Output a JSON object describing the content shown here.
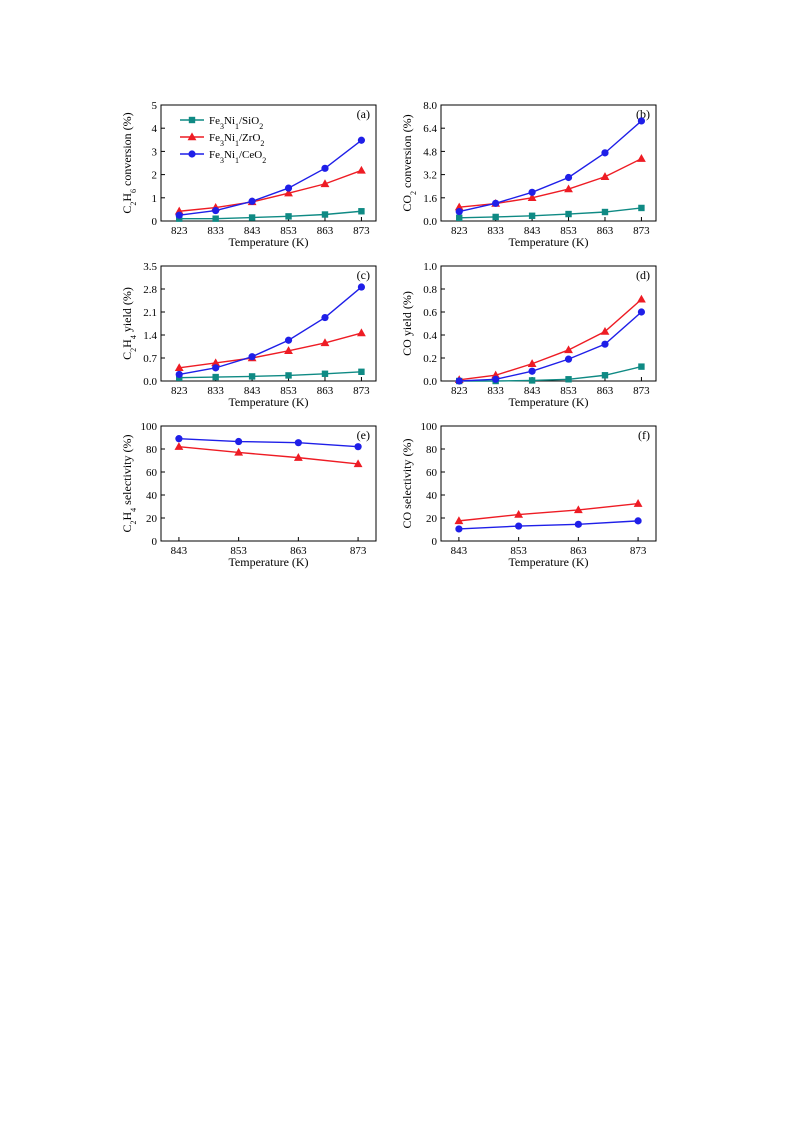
{
  "colors": {
    "SiO2": "#0f8a84",
    "ZrO2": "#ee1c24",
    "CeO2": "#1f1fe8"
  },
  "legend": [
    {
      "key": "SiO2",
      "parts": [
        [
          "Fe",
          ""
        ],
        [
          "3",
          "sub"
        ],
        [
          "Ni",
          ""
        ],
        [
          "1",
          "sub"
        ],
        [
          "/SiO",
          ""
        ],
        [
          "2",
          "sub"
        ]
      ],
      "marker": "square"
    },
    {
      "key": "ZrO2",
      "parts": [
        [
          "Fe",
          ""
        ],
        [
          "3",
          "sub"
        ],
        [
          "Ni",
          ""
        ],
        [
          "1",
          "sub"
        ],
        [
          "/ZrO",
          ""
        ],
        [
          "2",
          "sub"
        ]
      ],
      "marker": "triangle"
    },
    {
      "key": "CeO2",
      "parts": [
        [
          "Fe",
          ""
        ],
        [
          "3",
          "sub"
        ],
        [
          "Ni",
          ""
        ],
        [
          "1",
          "sub"
        ],
        [
          "/CeO",
          ""
        ],
        [
          "2",
          "sub"
        ]
      ],
      "marker": "circle"
    }
  ],
  "chart_data": [
    {
      "panel": "(a)",
      "type": "line",
      "xlabel": "Temperature (K)",
      "ylabel_parts": [
        [
          "C",
          ""
        ],
        [
          "2",
          "sub"
        ],
        [
          "H",
          ""
        ],
        [
          "6",
          "sub"
        ],
        [
          " conversion (%)",
          ""
        ]
      ],
      "x": [
        823,
        833,
        843,
        853,
        863,
        873
      ],
      "xlim": [
        818,
        877
      ],
      "ylim": [
        0,
        5
      ],
      "yticks": [
        "0",
        "1",
        "2",
        "3",
        "4",
        "5"
      ],
      "series": [
        {
          "name": "Fe3Ni1/SiO2",
          "key": "SiO2",
          "marker": "square",
          "values": [
            0.1,
            0.1,
            0.15,
            0.2,
            0.28,
            0.42
          ]
        },
        {
          "name": "Fe3Ni1/ZrO2",
          "key": "ZrO2",
          "marker": "triangle",
          "values": [
            0.42,
            0.58,
            0.82,
            1.2,
            1.6,
            2.18
          ]
        },
        {
          "name": "Fe3Ni1/CeO2",
          "key": "CeO2",
          "marker": "circle",
          "values": [
            0.25,
            0.45,
            0.85,
            1.42,
            2.27,
            3.48
          ]
        }
      ],
      "legend": true
    },
    {
      "panel": "(b)",
      "type": "line",
      "xlabel": "Temperature (K)",
      "ylabel_parts": [
        [
          "CO",
          ""
        ],
        [
          "2",
          "sub"
        ],
        [
          " conversion (%)",
          ""
        ]
      ],
      "x": [
        823,
        833,
        843,
        853,
        863,
        873
      ],
      "xlim": [
        818,
        877
      ],
      "ylim": [
        0,
        8
      ],
      "yticks": [
        "0.0",
        "1.6",
        "3.2",
        "4.8",
        "6.4",
        "8.0"
      ],
      "series": [
        {
          "name": "Fe3Ni1/SiO2",
          "key": "SiO2",
          "marker": "square",
          "values": [
            0.22,
            0.28,
            0.36,
            0.48,
            0.62,
            0.9
          ]
        },
        {
          "name": "Fe3Ni1/ZrO2",
          "key": "ZrO2",
          "marker": "triangle",
          "values": [
            0.95,
            1.2,
            1.6,
            2.2,
            3.05,
            4.3
          ]
        },
        {
          "name": "Fe3Ni1/CeO2",
          "key": "CeO2",
          "marker": "circle",
          "values": [
            0.65,
            1.22,
            1.98,
            3.0,
            4.7,
            6.9
          ]
        }
      ]
    },
    {
      "panel": "(c)",
      "type": "line",
      "xlabel": "Temperature (K)",
      "ylabel_parts": [
        [
          "C",
          ""
        ],
        [
          "2",
          "sub"
        ],
        [
          "H",
          ""
        ],
        [
          "4",
          "sub"
        ],
        [
          " yield (%)",
          ""
        ]
      ],
      "x": [
        823,
        833,
        843,
        853,
        863,
        873
      ],
      "xlim": [
        818,
        877
      ],
      "ylim": [
        0,
        3.5
      ],
      "yticks": [
        "0.0",
        "0.7",
        "1.4",
        "2.1",
        "2.8",
        "3.5"
      ],
      "series": [
        {
          "name": "Fe3Ni1/SiO2",
          "key": "SiO2",
          "marker": "square",
          "values": [
            0.1,
            0.12,
            0.14,
            0.17,
            0.22,
            0.28
          ]
        },
        {
          "name": "Fe3Ni1/ZrO2",
          "key": "ZrO2",
          "marker": "triangle",
          "values": [
            0.4,
            0.55,
            0.7,
            0.92,
            1.16,
            1.46
          ]
        },
        {
          "name": "Fe3Ni1/CeO2",
          "key": "CeO2",
          "marker": "circle",
          "values": [
            0.2,
            0.4,
            0.74,
            1.24,
            1.93,
            2.86
          ]
        }
      ]
    },
    {
      "panel": "(d)",
      "type": "line",
      "xlabel": "Temperature (K)",
      "ylabel_parts": [
        [
          "CO yield (%)",
          ""
        ]
      ],
      "x": [
        823,
        833,
        843,
        853,
        863,
        873
      ],
      "xlim": [
        818,
        877
      ],
      "ylim": [
        0,
        1.0
      ],
      "yticks": [
        "0.0",
        "0.2",
        "0.4",
        "0.6",
        "0.8",
        "1.0"
      ],
      "series": [
        {
          "name": "Fe3Ni1/SiO2",
          "key": "SiO2",
          "marker": "square",
          "values": [
            0.0,
            0.0,
            0.005,
            0.015,
            0.05,
            0.125
          ]
        },
        {
          "name": "Fe3Ni1/ZrO2",
          "key": "ZrO2",
          "marker": "triangle",
          "values": [
            0.01,
            0.05,
            0.15,
            0.27,
            0.43,
            0.71
          ]
        },
        {
          "name": "Fe3Ni1/CeO2",
          "key": "CeO2",
          "marker": "circle",
          "values": [
            0.0,
            0.015,
            0.085,
            0.19,
            0.32,
            0.6
          ]
        }
      ]
    },
    {
      "panel": "(e)",
      "type": "line",
      "xlabel": "Temperature (K)",
      "ylabel_parts": [
        [
          "C",
          ""
        ],
        [
          "2",
          "sub"
        ],
        [
          "H",
          ""
        ],
        [
          "4",
          "sub"
        ],
        [
          " selectivity (%)",
          ""
        ]
      ],
      "x": [
        843,
        853,
        863,
        873
      ],
      "xlim": [
        840,
        876
      ],
      "ylim": [
        0,
        100
      ],
      "yticks": [
        "0",
        "20",
        "40",
        "60",
        "80",
        "100"
      ],
      "series": [
        {
          "name": "Fe3Ni1/ZrO2",
          "key": "ZrO2",
          "marker": "triangle",
          "values": [
            82,
            77,
            72.5,
            67
          ]
        },
        {
          "name": "Fe3Ni1/CeO2",
          "key": "CeO2",
          "marker": "circle",
          "values": [
            89,
            86.5,
            85.5,
            82
          ]
        }
      ]
    },
    {
      "panel": "(f)",
      "type": "line",
      "xlabel": "Temperature (K)",
      "ylabel_parts": [
        [
          "CO selectivity (%)",
          ""
        ]
      ],
      "x": [
        843,
        853,
        863,
        873
      ],
      "xlim": [
        840,
        876
      ],
      "ylim": [
        0,
        100
      ],
      "yticks": [
        "0",
        "20",
        "40",
        "60",
        "80",
        "100"
      ],
      "series": [
        {
          "name": "Fe3Ni1/ZrO2",
          "key": "ZrO2",
          "marker": "triangle",
          "values": [
            17.5,
            23,
            27,
            32.5
          ]
        },
        {
          "name": "Fe3Ni1/CeO2",
          "key": "CeO2",
          "marker": "circle",
          "values": [
            10.5,
            13,
            14.5,
            17.5
          ]
        }
      ]
    }
  ]
}
